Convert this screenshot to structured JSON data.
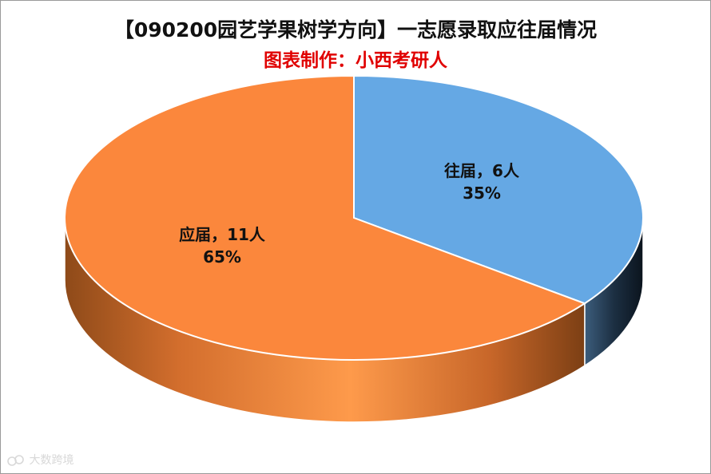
{
  "chart_data": {
    "type": "pie",
    "title": "【090200园艺学果树学方向】一志愿录取应往届情况",
    "subtitle": "图表制作：小西考研人",
    "slices": [
      {
        "name": "往届",
        "value": 6,
        "unit": "人",
        "percent": "35%",
        "color": "#65a8e4"
      },
      {
        "name": "应届",
        "value": 11,
        "unit": "人",
        "percent": "65%",
        "color": "#fb873c"
      }
    ],
    "legend": "none",
    "style": "3d"
  },
  "labels": [
    {
      "line1": "往届，6人",
      "line2": "35%"
    },
    {
      "line1": "应届，11人",
      "line2": "65%"
    }
  ],
  "watermark": {
    "text": "大数跨境"
  }
}
